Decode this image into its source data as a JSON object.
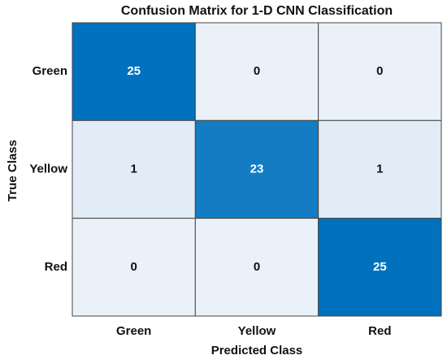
{
  "chart_data": {
    "type": "heatmap",
    "title": "Confusion Matrix for 1-D CNN Classification",
    "x_label": "Predicted Class",
    "y_label": "True Class",
    "x_categories": [
      "Green",
      "Yellow",
      "Red"
    ],
    "y_categories": [
      "Green",
      "Yellow",
      "Red"
    ],
    "values": [
      [
        25,
        0,
        0
      ],
      [
        1,
        23,
        1
      ],
      [
        0,
        0,
        25
      ]
    ],
    "colormap": [
      "#eaf1f9",
      "#0072bd"
    ]
  }
}
